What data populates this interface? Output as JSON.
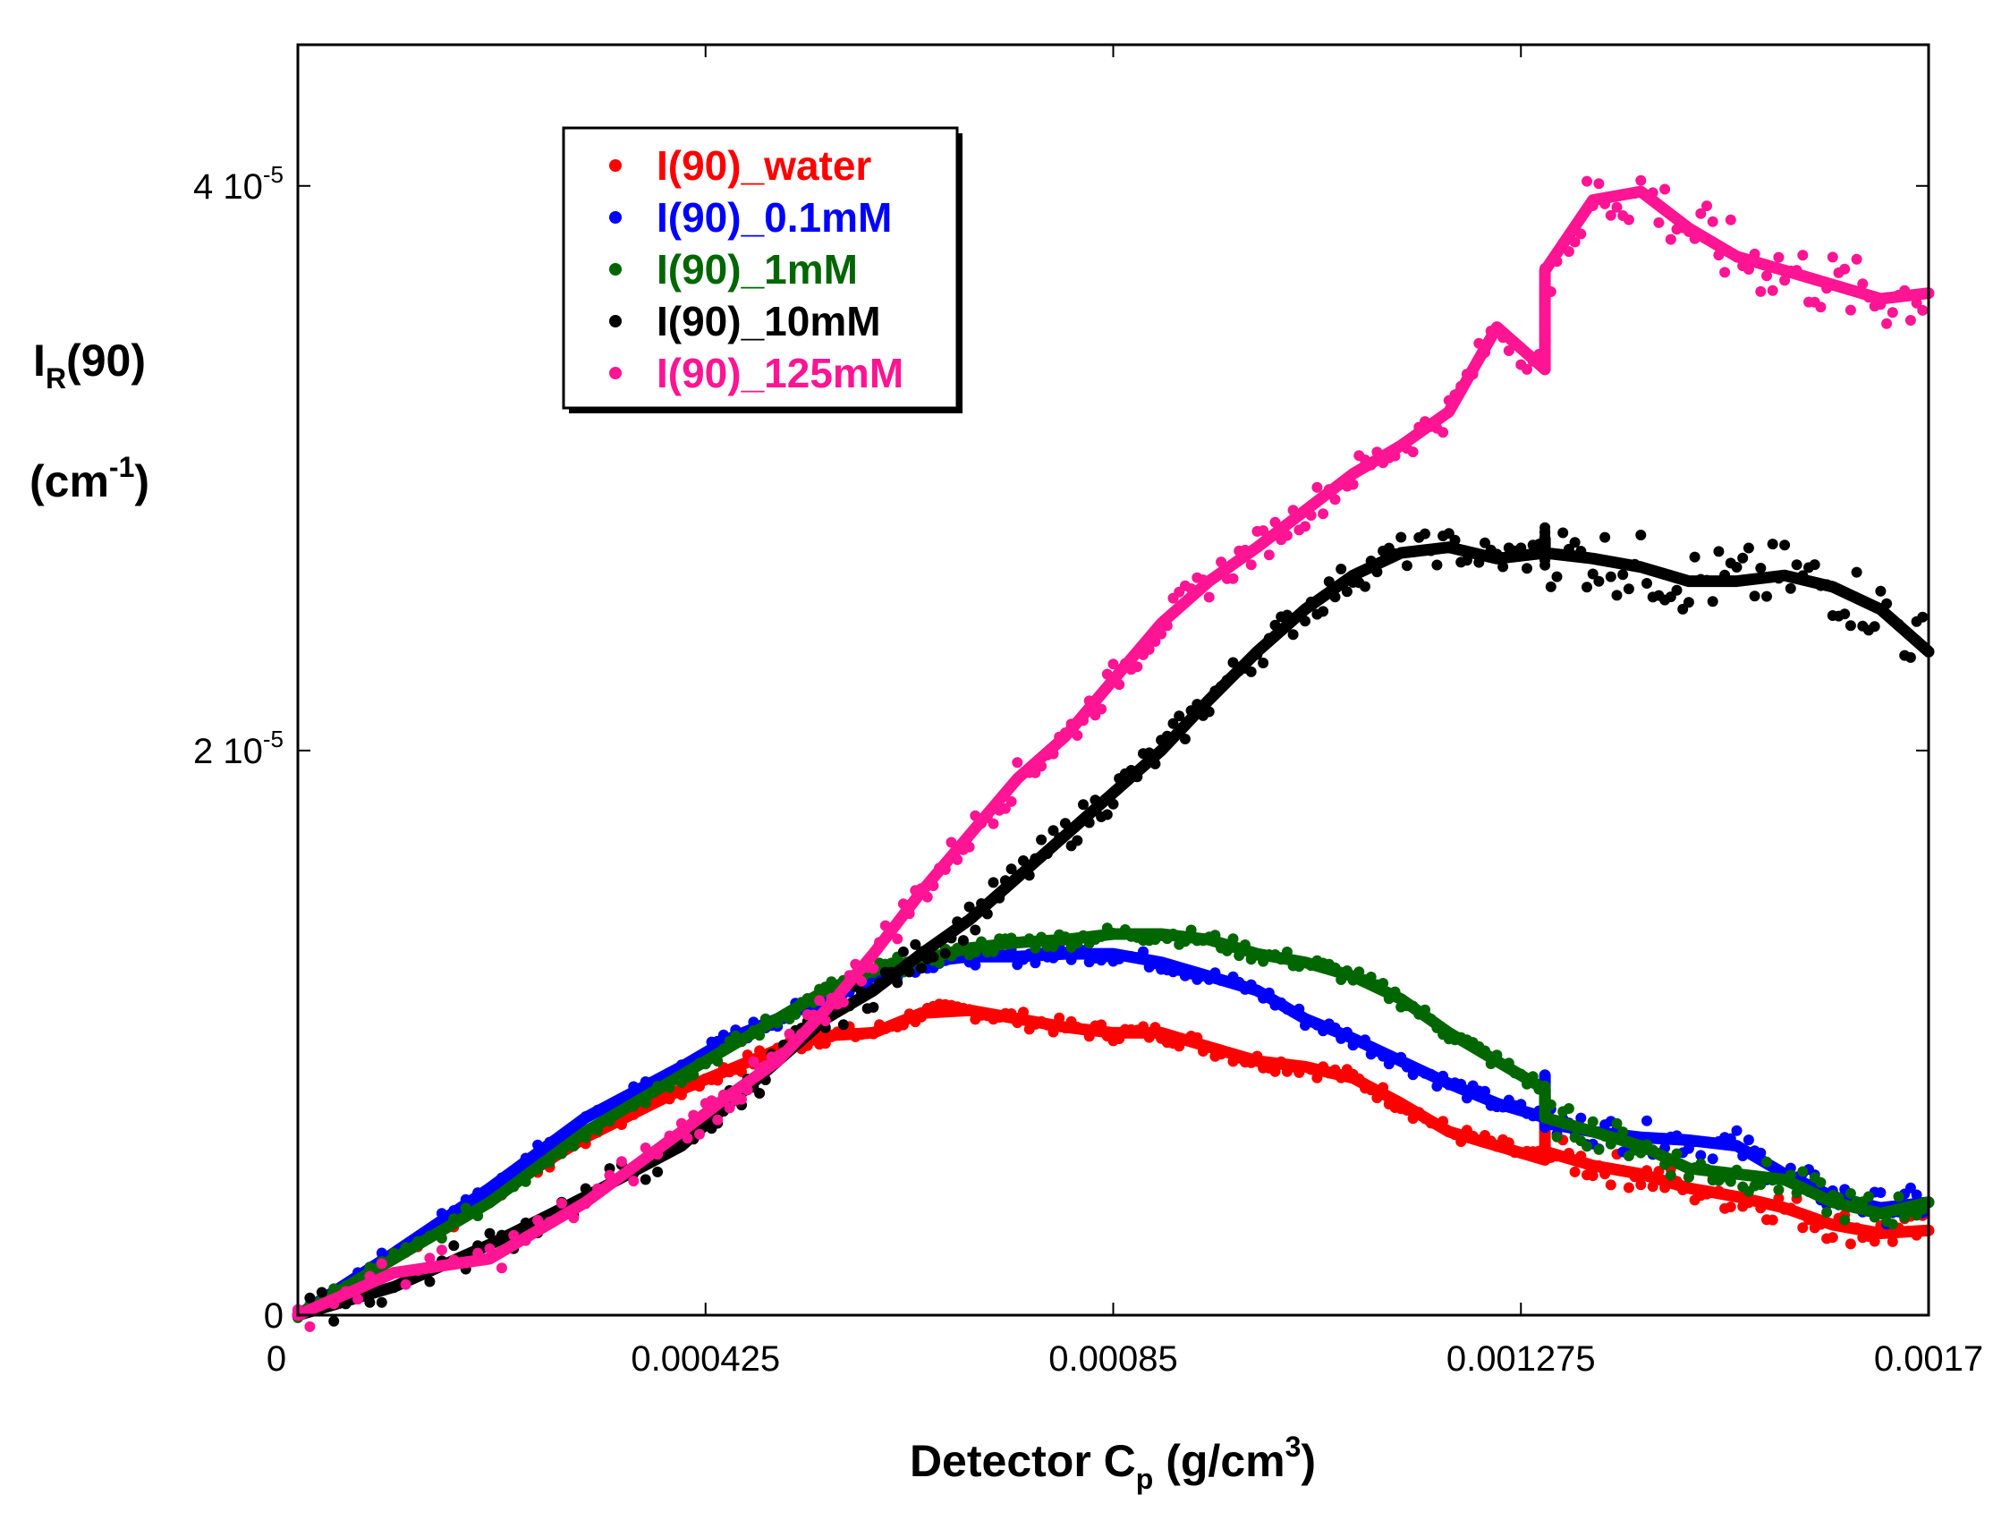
{
  "chart_data": {
    "type": "line",
    "xlabel": {
      "main": "Detector C",
      "sub": "p",
      "unit_pre": " (g/cm",
      "unit_sup": "3",
      "unit_post": ")"
    },
    "ylabel": {
      "line1_main": "I",
      "line1_sub": "R",
      "line1_post": "(90)",
      "line2_pre": "(cm",
      "line2_sup": "-1",
      "line2_post": ")"
    },
    "xlim": [
      0,
      0.0017
    ],
    "ylim": [
      0,
      4.5e-05
    ],
    "x_ticks": [
      {
        "value": 0,
        "label": "0"
      },
      {
        "value": 0.000425,
        "label": "0.000425"
      },
      {
        "value": 0.00085,
        "label": "0.00085"
      },
      {
        "value": 0.001275,
        "label": "0.001275"
      },
      {
        "value": 0.0017,
        "label": "0.0017"
      }
    ],
    "y_ticks": [
      {
        "value": 0,
        "label": "0",
        "exp": ""
      },
      {
        "value": 2e-05,
        "label": "2 10",
        "exp": "-5"
      },
      {
        "value": 4e-05,
        "label": "4 10",
        "exp": "-5"
      }
    ],
    "grid": false,
    "legend_position": "top-left",
    "series": [
      {
        "name": "I(90)_water",
        "color": "#ff0000",
        "x": [
          0,
          0.0001,
          0.0002,
          0.0003,
          0.0004,
          0.00045,
          0.0005,
          0.00055,
          0.0006,
          0.00065,
          0.0007,
          0.00075,
          0.0008,
          0.00085,
          0.0009,
          0.00095,
          0.001,
          0.00105,
          0.0011,
          0.00115,
          0.0012,
          0.00125,
          0.0013,
          0.0013,
          0.0013,
          0.00135,
          0.0014,
          0.00145,
          0.0015,
          0.00155,
          0.0016,
          0.00165,
          0.0017
        ],
        "y": [
          0,
          2e-06,
          4.2e-06,
          6.3e-06,
          8e-06,
          8.7e-06,
          9.4e-06,
          9.9e-06,
          1e-05,
          1.07e-05,
          1.08e-05,
          1.05e-05,
          1.02e-05,
          1e-05,
          1e-05,
          9.5e-06,
          9e-06,
          8.8e-06,
          8.4e-06,
          7.5e-06,
          6.5e-06,
          6e-06,
          5.5e-06,
          8e-06,
          5.8e-06,
          5.3e-06,
          5e-06,
          4.5e-06,
          4.2e-06,
          3.8e-06,
          3.2e-06,
          2.9e-06,
          3e-06
        ]
      },
      {
        "name": "I(90)_0.1mM",
        "color": "#0000ff",
        "x": [
          0,
          0.0001,
          0.0002,
          0.0003,
          0.0004,
          0.00045,
          0.0005,
          0.00055,
          0.0006,
          0.00065,
          0.0007,
          0.00075,
          0.0008,
          0.00085,
          0.0009,
          0.00095,
          0.001,
          0.00105,
          0.0011,
          0.00115,
          0.0012,
          0.00125,
          0.0013,
          0.0013,
          0.0013,
          0.00135,
          0.0014,
          0.00145,
          0.0015,
          0.00155,
          0.0016,
          0.00165,
          0.0017
        ],
        "y": [
          0,
          2.2e-06,
          4.5e-06,
          7e-06,
          8.8e-06,
          9.8e-06,
          1.05e-05,
          1.12e-05,
          1.2e-05,
          1.25e-05,
          1.27e-05,
          1.27e-05,
          1.28e-05,
          1.28e-05,
          1.25e-05,
          1.2e-05,
          1.15e-05,
          1.05e-05,
          9.8e-06,
          9e-06,
          8.2e-06,
          7.5e-06,
          7e-06,
          8.5e-06,
          6.8e-06,
          6.5e-06,
          6.3e-06,
          6.2e-06,
          6e-06,
          5e-06,
          4.2e-06,
          3.8e-06,
          4e-06
        ]
      },
      {
        "name": "I(90)_1mM",
        "color": "#006600",
        "x": [
          0,
          0.0001,
          0.0002,
          0.0003,
          0.0004,
          0.00045,
          0.0005,
          0.00055,
          0.0006,
          0.00065,
          0.0007,
          0.00075,
          0.0008,
          0.00085,
          0.0009,
          0.00095,
          0.001,
          0.00105,
          0.0011,
          0.00115,
          0.0012,
          0.00125,
          0.0013,
          0.0013,
          0.0013,
          0.00135,
          0.0014,
          0.00145,
          0.0015,
          0.00155,
          0.0016,
          0.00165,
          0.0017
        ],
        "y": [
          0,
          2e-06,
          4e-06,
          6.5e-06,
          8.5e-06,
          9.5e-06,
          1.05e-05,
          1.15e-05,
          1.22e-05,
          1.26e-05,
          1.3e-05,
          1.32e-05,
          1.33e-05,
          1.35e-05,
          1.35e-05,
          1.33e-05,
          1.28e-05,
          1.25e-05,
          1.2e-05,
          1.12e-05,
          1e-05,
          9e-06,
          8e-06,
          7.5e-06,
          7e-06,
          6.5e-06,
          6e-06,
          5.2e-06,
          5e-06,
          4.8e-06,
          4e-06,
          3.6e-06,
          4e-06
        ]
      },
      {
        "name": "I(90)_10mM",
        "color": "#000000",
        "x": [
          0,
          0.0001,
          0.0002,
          0.0003,
          0.0004,
          0.00045,
          0.0005,
          0.00055,
          0.0006,
          0.00065,
          0.0007,
          0.00075,
          0.0008,
          0.00085,
          0.0009,
          0.00095,
          0.001,
          0.00105,
          0.0011,
          0.00115,
          0.0012,
          0.00125,
          0.0013,
          0.0013,
          0.0013,
          0.00135,
          0.0014,
          0.00145,
          0.0015,
          0.00155,
          0.0016,
          0.00165,
          0.0017
        ],
        "y": [
          0,
          1e-06,
          2.5e-06,
          4.2e-06,
          6e-06,
          7.5e-06,
          9e-06,
          1.05e-05,
          1.15e-05,
          1.28e-05,
          1.4e-05,
          1.55e-05,
          1.7e-05,
          1.85e-05,
          2e-05,
          2.18e-05,
          2.35e-05,
          2.5e-05,
          2.62e-05,
          2.7e-05,
          2.72e-05,
          2.68e-05,
          2.7e-05,
          2.75e-05,
          2.7e-05,
          2.68e-05,
          2.65e-05,
          2.6e-05,
          2.6e-05,
          2.62e-05,
          2.58e-05,
          2.5e-05,
          2.35e-05
        ]
      },
      {
        "name": "I(90)_125mM",
        "color": "#ff1493",
        "x": [
          0,
          0.0001,
          0.0002,
          0.0003,
          0.0004,
          0.00045,
          0.0005,
          0.00055,
          0.0006,
          0.00065,
          0.0007,
          0.00075,
          0.0008,
          0.00085,
          0.0009,
          0.00095,
          0.001,
          0.00105,
          0.0011,
          0.00115,
          0.0012,
          0.00125,
          0.0013,
          0.0013,
          0.0013,
          0.00135,
          0.0014,
          0.00145,
          0.0015,
          0.00155,
          0.0016,
          0.00165,
          0.0017
        ],
        "y": [
          0,
          1.5e-06,
          2e-06,
          4e-06,
          6.5e-06,
          7.8e-06,
          9e-06,
          1.08e-05,
          1.28e-05,
          1.5e-05,
          1.7e-05,
          1.9e-05,
          2.05e-05,
          2.25e-05,
          2.45e-05,
          2.6e-05,
          2.72e-05,
          2.85e-05,
          2.98e-05,
          3.08e-05,
          3.2e-05,
          3.5e-05,
          3.35e-05,
          3.55e-05,
          3.7e-05,
          3.95e-05,
          3.98e-05,
          3.85e-05,
          3.75e-05,
          3.7e-05,
          3.65e-05,
          3.6e-05,
          3.62e-05
        ]
      }
    ]
  }
}
